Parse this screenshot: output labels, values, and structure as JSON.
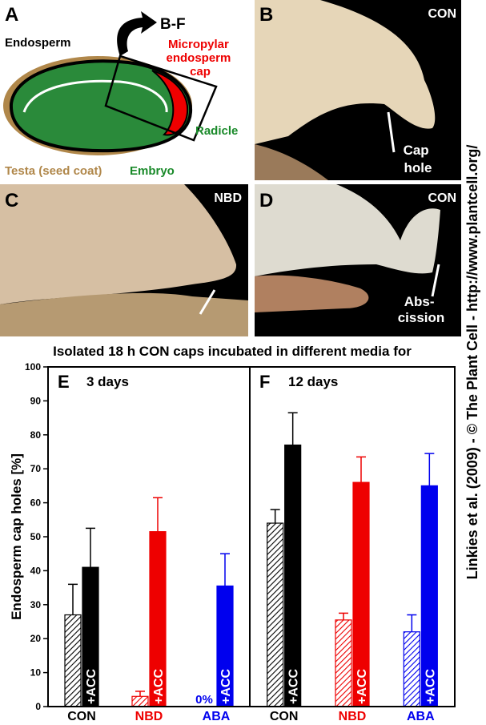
{
  "panels": {
    "A": {
      "label": "A",
      "arrow": "B-F",
      "endosperm": "Endosperm",
      "cap": [
        "Micropylar",
        "endosperm",
        "cap"
      ],
      "radicle": "Radicle",
      "testa": "Testa (seed coat)",
      "embryo": "Embryo"
    },
    "B": {
      "label": "B",
      "condition": "CON",
      "note": [
        "Cap",
        "hole"
      ]
    },
    "C": {
      "label": "C",
      "condition": "NBD"
    },
    "D": {
      "label": "D",
      "condition": "CON",
      "note": [
        "Abs-",
        "cission"
      ]
    }
  },
  "heading": "Isolated 18 h CON caps incubated in different media for",
  "credit": "Linkies et al. (2009) - © The Plant Cell - http://www.plantcell.org/",
  "chart_data": [
    {
      "type": "bar",
      "panel": "E",
      "subtitle": "3 days",
      "ylabel": "Endosperm cap holes [%]",
      "categories": [
        "CON",
        "NBD",
        "ABA"
      ],
      "colors": [
        "#000000",
        "#ee0000",
        "#0000ee"
      ],
      "ylim": [
        0,
        100
      ],
      "yticks": [
        0,
        10,
        20,
        30,
        40,
        50,
        60,
        70,
        80,
        90,
        100
      ],
      "series": [
        {
          "pattern": "hatched",
          "values": [
            27,
            3,
            0
          ],
          "errors": [
            9,
            1.5,
            null
          ],
          "value_labels": [
            null,
            null,
            "0%"
          ]
        },
        {
          "name": "+ACC",
          "pattern": "solid",
          "values": [
            41,
            51.5,
            35.5
          ],
          "errors": [
            11.5,
            10,
            9.5
          ]
        }
      ]
    },
    {
      "type": "bar",
      "panel": "F",
      "subtitle": "12 days",
      "categories": [
        "CON",
        "NBD",
        "ABA"
      ],
      "colors": [
        "#000000",
        "#ee0000",
        "#0000ee"
      ],
      "ylim": [
        0,
        100
      ],
      "series": [
        {
          "pattern": "hatched",
          "values": [
            54,
            25.5,
            22
          ],
          "errors": [
            4,
            2,
            5
          ]
        },
        {
          "name": "+ACC",
          "pattern": "solid",
          "values": [
            77,
            66,
            65
          ],
          "errors": [
            9.5,
            7.5,
            9.5
          ]
        }
      ]
    }
  ]
}
